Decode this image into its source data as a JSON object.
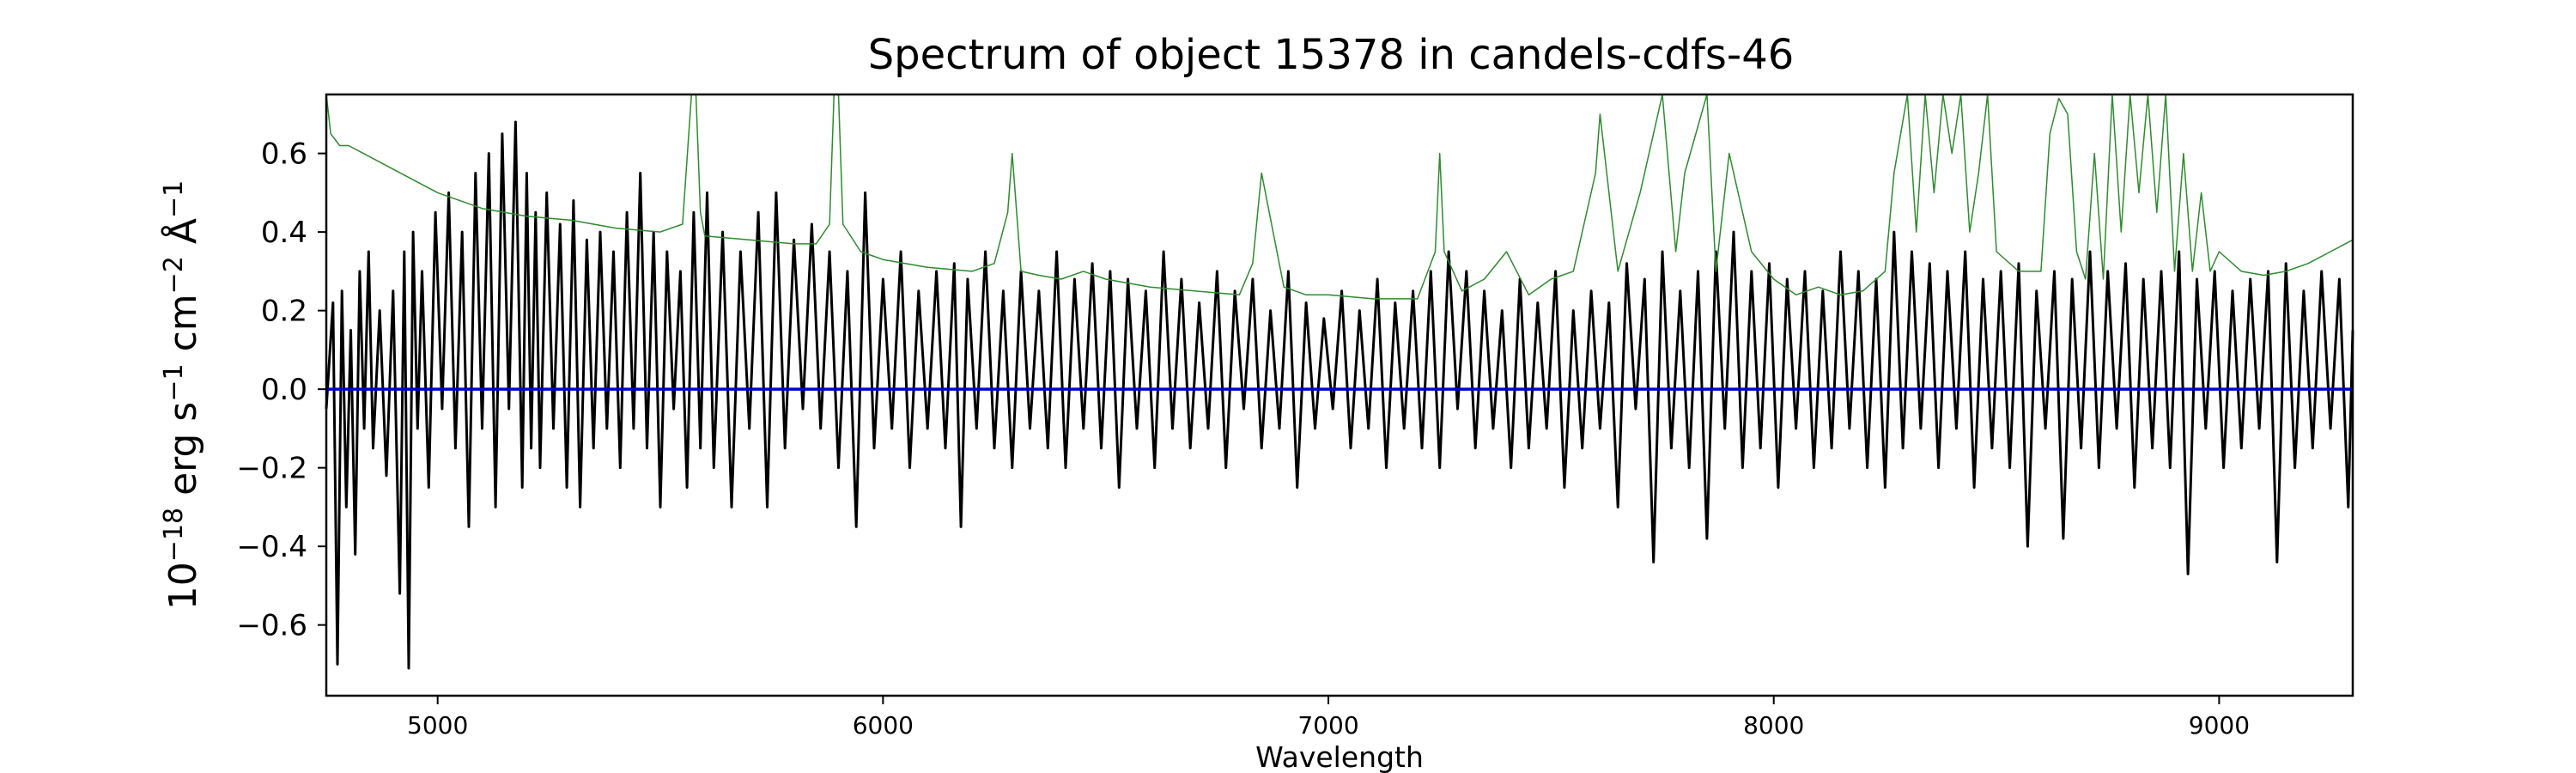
{
  "chart_data": {
    "type": "line",
    "title": "Spectrum of object 15378 in candels-cdfs-46",
    "xlabel": "Wavelength",
    "ylabel": {
      "base": "10",
      "base_exp": "−18",
      "t1": " erg s",
      "s_exp": "−1",
      "t2": " cm",
      "cm_exp": "−2",
      "t3": " Å",
      "a_exp": "−1"
    },
    "xlim": [
      4750,
      9300
    ],
    "ylim": [
      -0.78,
      0.75
    ],
    "xticks": [
      {
        "value": 5000,
        "label": "5000"
      },
      {
        "value": 6000,
        "label": "6000"
      },
      {
        "value": 7000,
        "label": "7000"
      },
      {
        "value": 8000,
        "label": "8000"
      },
      {
        "value": 9000,
        "label": "9000"
      }
    ],
    "yticks": [
      {
        "value": 0.6,
        "label": "0.6"
      },
      {
        "value": 0.4,
        "label": "0.4"
      },
      {
        "value": 0.2,
        "label": "0.2"
      },
      {
        "value": 0.0,
        "label": "0.0"
      },
      {
        "value": -0.2,
        "label": "−0.2"
      },
      {
        "value": -0.4,
        "label": "−0.4"
      },
      {
        "value": -0.6,
        "label": "−0.6"
      }
    ],
    "grid": false,
    "series": [
      {
        "key": "flux",
        "color": "#000000",
        "x": [
          4750,
          4765,
          4775,
          4785,
          4795,
          4805,
          4815,
          4825,
          4835,
          4845,
          4855,
          4870,
          4885,
          4900,
          4915,
          4925,
          4935,
          4945,
          4955,
          4965,
          4980,
          4995,
          5010,
          5025,
          5040,
          5055,
          5070,
          5085,
          5100,
          5115,
          5130,
          5145,
          5160,
          5175,
          5190,
          5200,
          5210,
          5220,
          5230,
          5245,
          5260,
          5275,
          5290,
          5305,
          5320,
          5335,
          5350,
          5365,
          5380,
          5395,
          5410,
          5425,
          5440,
          5455,
          5470,
          5485,
          5500,
          5515,
          5530,
          5545,
          5560,
          5575,
          5590,
          5605,
          5620,
          5640,
          5660,
          5680,
          5700,
          5720,
          5740,
          5760,
          5780,
          5800,
          5820,
          5840,
          5860,
          5880,
          5900,
          5920,
          5940,
          5960,
          5980,
          6000,
          6020,
          6040,
          6060,
          6080,
          6100,
          6120,
          6140,
          6160,
          6175,
          6190,
          6210,
          6230,
          6250,
          6270,
          6290,
          6310,
          6330,
          6350,
          6370,
          6390,
          6410,
          6430,
          6450,
          6470,
          6490,
          6510,
          6530,
          6550,
          6570,
          6590,
          6610,
          6630,
          6650,
          6670,
          6690,
          6710,
          6730,
          6750,
          6770,
          6790,
          6810,
          6830,
          6850,
          6870,
          6890,
          6910,
          6930,
          6950,
          6970,
          6990,
          7010,
          7030,
          7050,
          7070,
          7090,
          7110,
          7130,
          7150,
          7170,
          7190,
          7210,
          7230,
          7250,
          7270,
          7290,
          7310,
          7330,
          7350,
          7370,
          7390,
          7410,
          7430,
          7450,
          7470,
          7490,
          7510,
          7530,
          7550,
          7570,
          7590,
          7610,
          7630,
          7650,
          7670,
          7690,
          7710,
          7730,
          7750,
          7770,
          7790,
          7810,
          7830,
          7850,
          7870,
          7890,
          7910,
          7930,
          7950,
          7970,
          7990,
          8010,
          8030,
          8050,
          8070,
          8090,
          8110,
          8130,
          8150,
          8170,
          8190,
          8210,
          8230,
          8250,
          8270,
          8290,
          8310,
          8330,
          8350,
          8370,
          8390,
          8410,
          8430,
          8450,
          8470,
          8490,
          8510,
          8530,
          8550,
          8570,
          8590,
          8610,
          8630,
          8650,
          8670,
          8690,
          8710,
          8730,
          8750,
          8770,
          8790,
          8810,
          8830,
          8850,
          8870,
          8890,
          8910,
          8930,
          8950,
          8970,
          8990,
          9010,
          9030,
          9050,
          9070,
          9090,
          9110,
          9130,
          9150,
          9170,
          9190,
          9210,
          9230,
          9250,
          9270,
          9290,
          9300
        ],
        "y": [
          -0.05,
          0.22,
          -0.7,
          0.25,
          -0.3,
          0.15,
          -0.42,
          0.3,
          -0.1,
          0.35,
          -0.15,
          0.2,
          -0.22,
          0.25,
          -0.52,
          0.35,
          -0.71,
          0.4,
          -0.1,
          0.3,
          -0.25,
          0.45,
          -0.05,
          0.5,
          -0.15,
          0.4,
          -0.35,
          0.55,
          -0.1,
          0.6,
          -0.3,
          0.65,
          -0.05,
          0.68,
          -0.25,
          0.55,
          -0.15,
          0.45,
          -0.2,
          0.5,
          -0.1,
          0.42,
          -0.25,
          0.48,
          -0.3,
          0.38,
          -0.15,
          0.4,
          -0.1,
          0.35,
          -0.2,
          0.45,
          -0.1,
          0.55,
          -0.15,
          0.4,
          -0.3,
          0.35,
          -0.05,
          0.3,
          -0.25,
          0.45,
          -0.15,
          0.5,
          -0.2,
          0.4,
          -0.3,
          0.35,
          -0.1,
          0.45,
          -0.3,
          0.5,
          -0.15,
          0.38,
          -0.05,
          0.42,
          -0.1,
          0.35,
          -0.2,
          0.3,
          -0.35,
          0.5,
          -0.15,
          0.28,
          -0.1,
          0.35,
          -0.2,
          0.25,
          -0.1,
          0.3,
          -0.15,
          0.32,
          -0.35,
          0.28,
          -0.1,
          0.35,
          -0.15,
          0.25,
          -0.2,
          0.3,
          -0.1,
          0.25,
          -0.15,
          0.35,
          -0.2,
          0.28,
          -0.1,
          0.32,
          -0.15,
          0.3,
          -0.25,
          0.28,
          -0.1,
          0.25,
          -0.2,
          0.35,
          -0.1,
          0.28,
          -0.15,
          0.22,
          -0.1,
          0.3,
          -0.2,
          0.25,
          -0.05,
          0.28,
          -0.15,
          0.2,
          -0.1,
          0.3,
          -0.25,
          0.22,
          -0.1,
          0.18,
          -0.05,
          0.25,
          -0.15,
          0.2,
          -0.1,
          0.28,
          -0.2,
          0.22,
          -0.1,
          0.25,
          -0.15,
          0.3,
          -0.2,
          0.35,
          -0.05,
          0.3,
          -0.15,
          0.25,
          -0.1,
          0.2,
          -0.2,
          0.28,
          -0.15,
          0.22,
          -0.1,
          0.3,
          -0.25,
          0.2,
          -0.15,
          0.25,
          -0.1,
          0.22,
          -0.3,
          0.32,
          -0.05,
          0.28,
          -0.44,
          0.35,
          -0.15,
          0.25,
          -0.2,
          0.3,
          -0.38,
          0.35,
          -0.1,
          0.4,
          -0.2,
          0.3,
          -0.15,
          0.32,
          -0.25,
          0.28,
          -0.1,
          0.3,
          -0.2,
          0.25,
          -0.15,
          0.35,
          -0.1,
          0.3,
          -0.2,
          0.28,
          -0.25,
          0.4,
          -0.15,
          0.35,
          -0.1,
          0.32,
          -0.2,
          0.3,
          -0.1,
          0.35,
          -0.25,
          0.28,
          -0.15,
          0.3,
          -0.2,
          0.32,
          -0.4,
          0.25,
          -0.1,
          0.3,
          -0.38,
          0.28,
          -0.15,
          0.35,
          -0.2,
          0.3,
          -0.1,
          0.32,
          -0.25,
          0.28,
          -0.15,
          0.3,
          -0.2,
          0.35,
          -0.47,
          0.28,
          -0.1,
          0.3,
          -0.2,
          0.25,
          -0.15,
          0.28,
          -0.1,
          0.3,
          -0.44,
          0.32,
          -0.2,
          0.25,
          -0.15,
          0.3,
          -0.1,
          0.28,
          -0.3,
          0.15
        ]
      },
      {
        "key": "error",
        "color": "#2e8b2e",
        "x": [
          4750,
          4760,
          4780,
          4800,
          4850,
          4900,
          4950,
          5000,
          5100,
          5200,
          5300,
          5400,
          5500,
          5550,
          5570,
          5580,
          5590,
          5600,
          5700,
          5800,
          5850,
          5880,
          5890,
          5900,
          5910,
          5950,
          6000,
          6100,
          6200,
          6250,
          6280,
          6290,
          6300,
          6310,
          6350,
          6400,
          6450,
          6500,
          6550,
          6600,
          6700,
          6800,
          6830,
          6850,
          6900,
          6950,
          7000,
          7100,
          7200,
          7240,
          7250,
          7260,
          7300,
          7350,
          7400,
          7450,
          7500,
          7550,
          7600,
          7610,
          7650,
          7700,
          7750,
          7780,
          7800,
          7850,
          7870,
          7900,
          7950,
          8000,
          8050,
          8100,
          8150,
          8200,
          8250,
          8270,
          8300,
          8320,
          8340,
          8360,
          8380,
          8400,
          8420,
          8440,
          8460,
          8480,
          8500,
          8550,
          8600,
          8620,
          8640,
          8660,
          8680,
          8700,
          8720,
          8740,
          8760,
          8780,
          8800,
          8820,
          8840,
          8860,
          8880,
          8900,
          8920,
          8940,
          8960,
          8980,
          9000,
          9050,
          9100,
          9150,
          9200,
          9250,
          9300
        ],
        "y": [
          0.75,
          0.65,
          0.62,
          0.62,
          0.59,
          0.56,
          0.53,
          0.5,
          0.46,
          0.44,
          0.43,
          0.41,
          0.4,
          0.42,
          0.75,
          0.75,
          0.45,
          0.39,
          0.38,
          0.37,
          0.37,
          0.42,
          0.75,
          0.75,
          0.42,
          0.35,
          0.33,
          0.31,
          0.3,
          0.32,
          0.45,
          0.6,
          0.45,
          0.3,
          0.29,
          0.28,
          0.3,
          0.28,
          0.27,
          0.26,
          0.25,
          0.24,
          0.32,
          0.55,
          0.26,
          0.24,
          0.24,
          0.23,
          0.23,
          0.35,
          0.6,
          0.35,
          0.25,
          0.28,
          0.35,
          0.24,
          0.28,
          0.3,
          0.55,
          0.7,
          0.3,
          0.5,
          0.75,
          0.35,
          0.55,
          0.75,
          0.3,
          0.6,
          0.35,
          0.28,
          0.24,
          0.26,
          0.24,
          0.25,
          0.3,
          0.55,
          0.75,
          0.4,
          0.75,
          0.5,
          0.75,
          0.6,
          0.75,
          0.4,
          0.55,
          0.75,
          0.35,
          0.3,
          0.3,
          0.65,
          0.74,
          0.7,
          0.35,
          0.28,
          0.6,
          0.28,
          0.75,
          0.4,
          0.75,
          0.5,
          0.75,
          0.45,
          0.75,
          0.3,
          0.6,
          0.3,
          0.5,
          0.3,
          0.35,
          0.3,
          0.29,
          0.3,
          0.32,
          0.35,
          0.38
        ]
      },
      {
        "key": "model",
        "color": "#0000cc",
        "x": [
          4750,
          9300
        ],
        "y": [
          0.0,
          0.0
        ]
      }
    ]
  }
}
